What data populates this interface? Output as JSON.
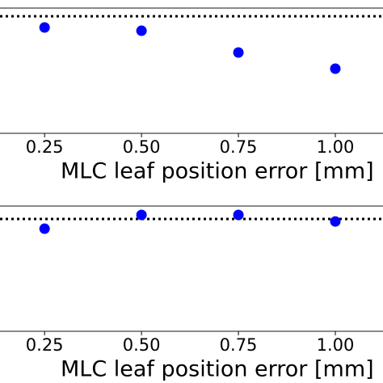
{
  "chart_data": [
    {
      "type": "scatter",
      "x_label": "MLC leaf position error [mm]",
      "x": [
        0.25,
        0.5,
        0.75,
        1.0
      ],
      "values": [
        0.845,
        0.819,
        0.645,
        0.516
      ],
      "color": "#0000ff",
      "xlim": [
        0.135,
        1.123
      ],
      "ylim": [
        0,
        1
      ],
      "hline": 0.935,
      "xticks": [
        0.25,
        {
          "value": 0.5,
          "label": "0.50"
        },
        0.75,
        {
          "value": 1.0,
          "label": "1.00"
        }
      ]
    },
    {
      "type": "scatter",
      "x_label": "MLC leaf position error [mm]",
      "x": [
        0.25,
        0.5,
        0.75,
        1.0
      ],
      "values": [
        0.819,
        0.929,
        0.929,
        0.877
      ],
      "color": "#0000ff",
      "xlim": [
        0.135,
        1.123
      ],
      "ylim": [
        0,
        1
      ],
      "hline": 0.897,
      "xticks": [
        0.25,
        {
          "value": 0.5,
          "label": "0.50"
        },
        0.75,
        {
          "value": 1.0,
          "label": "1.00"
        }
      ]
    }
  ]
}
